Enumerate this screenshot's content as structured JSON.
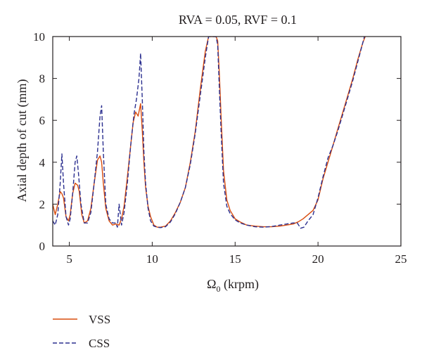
{
  "chart_data": {
    "type": "line",
    "title": "RVA = 0.05, RVF = 0.1",
    "xlabel_main": "Ω",
    "xlabel_sub": "0",
    "xlabel_rest": " (krpm)",
    "ylabel": "Axial depth of cut (mm)",
    "xlim": [
      4,
      25
    ],
    "ylim": [
      0,
      10
    ],
    "xticks": [
      5,
      10,
      15,
      20,
      25
    ],
    "yticks": [
      0,
      2,
      4,
      6,
      8,
      10
    ],
    "grid": false,
    "legend_position": "bottom-left",
    "series": [
      {
        "name": "VSS",
        "color": "#d94d0f",
        "dash": "solid",
        "x": [
          4.0,
          4.15,
          4.3,
          4.45,
          4.55,
          4.65,
          4.8,
          4.95,
          5.05,
          5.2,
          5.35,
          5.5,
          5.6,
          5.75,
          5.9,
          6.1,
          6.3,
          6.5,
          6.7,
          6.85,
          6.95,
          7.05,
          7.2,
          7.4,
          7.6,
          7.8,
          8.0,
          8.15,
          8.3,
          8.5,
          8.7,
          8.85,
          9.0,
          9.15,
          9.3,
          9.4,
          9.5,
          9.6,
          9.75,
          9.9,
          10.1,
          10.3,
          10.5,
          10.8,
          11.1,
          11.4,
          11.7,
          12.0,
          12.3,
          12.6,
          12.9,
          13.2,
          13.4,
          13.55,
          13.65,
          13.75,
          13.85,
          13.95,
          14.05,
          14.15,
          14.3,
          14.5,
          14.7,
          15.0,
          15.3,
          15.7,
          16.2,
          16.7,
          17.2,
          17.7,
          18.1,
          18.5,
          18.8,
          19.1,
          19.4,
          19.7,
          20.0,
          20.3,
          20.6,
          20.9,
          21.2,
          21.5,
          21.8,
          22.1,
          22.4,
          22.7,
          22.85
        ],
        "y": [
          2.0,
          1.5,
          2.0,
          2.6,
          2.5,
          2.3,
          1.4,
          1.2,
          1.5,
          2.5,
          3.0,
          2.9,
          2.6,
          1.5,
          1.1,
          1.2,
          1.8,
          3.0,
          4.1,
          4.3,
          4.0,
          3.0,
          1.8,
          1.2,
          1.0,
          1.05,
          1.0,
          1.3,
          1.9,
          3.3,
          4.8,
          5.9,
          6.4,
          6.2,
          6.8,
          5.5,
          4.0,
          2.8,
          1.9,
          1.4,
          1.0,
          0.9,
          0.9,
          0.95,
          1.2,
          1.6,
          2.1,
          2.8,
          4.0,
          5.5,
          7.5,
          9.3,
          10.0,
          10.0,
          10.0,
          10.0,
          10.0,
          9.8,
          8.2,
          6.2,
          3.6,
          2.2,
          1.7,
          1.3,
          1.15,
          1.0,
          0.95,
          0.92,
          0.92,
          0.95,
          1.0,
          1.05,
          1.15,
          1.3,
          1.5,
          1.7,
          2.2,
          3.2,
          4.0,
          4.8,
          5.6,
          6.4,
          7.2,
          8.0,
          8.9,
          9.7,
          10.0
        ]
      },
      {
        "name": "CSS",
        "color": "#2b2f8f",
        "dash": "dashed",
        "x": [
          4.0,
          4.15,
          4.3,
          4.45,
          4.55,
          4.65,
          4.8,
          4.95,
          5.05,
          5.2,
          5.35,
          5.45,
          5.55,
          5.7,
          5.9,
          6.1,
          6.3,
          6.5,
          6.7,
          6.85,
          6.95,
          7.05,
          7.2,
          7.4,
          7.6,
          7.8,
          7.9,
          8.0,
          8.15,
          8.3,
          8.5,
          8.7,
          8.9,
          9.05,
          9.2,
          9.3,
          9.4,
          9.5,
          9.6,
          9.75,
          9.9,
          10.1,
          10.3,
          10.5,
          10.8,
          11.1,
          11.4,
          11.7,
          12.0,
          12.3,
          12.6,
          12.9,
          13.2,
          13.4,
          13.55,
          13.65,
          13.75,
          13.85,
          13.95,
          14.05,
          14.15,
          14.3,
          14.5,
          14.7,
          15.0,
          15.3,
          15.7,
          16.2,
          16.7,
          17.2,
          17.7,
          18.1,
          18.5,
          18.75,
          18.95,
          19.15,
          19.4,
          19.7,
          20.0,
          20.3,
          20.6,
          20.9,
          21.2,
          21.5,
          21.8,
          22.1,
          22.4,
          22.7,
          22.8
        ],
        "y": [
          1.2,
          1.0,
          1.5,
          3.0,
          4.4,
          3.0,
          1.4,
          1.0,
          1.3,
          2.5,
          4.0,
          4.3,
          3.5,
          2.0,
          1.1,
          1.1,
          1.6,
          3.0,
          4.5,
          6.2,
          6.7,
          4.5,
          2.0,
          1.3,
          1.1,
          1.1,
          0.9,
          2.0,
          1.0,
          1.6,
          3.0,
          4.8,
          6.3,
          7.0,
          8.0,
          9.2,
          7.0,
          4.5,
          3.0,
          1.8,
          1.2,
          0.95,
          0.9,
          0.88,
          0.92,
          1.15,
          1.55,
          2.1,
          2.8,
          3.9,
          5.4,
          7.2,
          9.0,
          10.0,
          10.0,
          10.0,
          10.0,
          10.0,
          9.6,
          7.5,
          5.5,
          3.0,
          1.9,
          1.55,
          1.25,
          1.1,
          1.0,
          0.92,
          0.9,
          0.93,
          1.0,
          1.05,
          1.1,
          1.1,
          0.85,
          0.9,
          1.2,
          1.5,
          2.3,
          3.3,
          4.2,
          4.8,
          5.5,
          6.3,
          7.1,
          7.9,
          8.8,
          9.7,
          10.0
        ]
      }
    ]
  }
}
